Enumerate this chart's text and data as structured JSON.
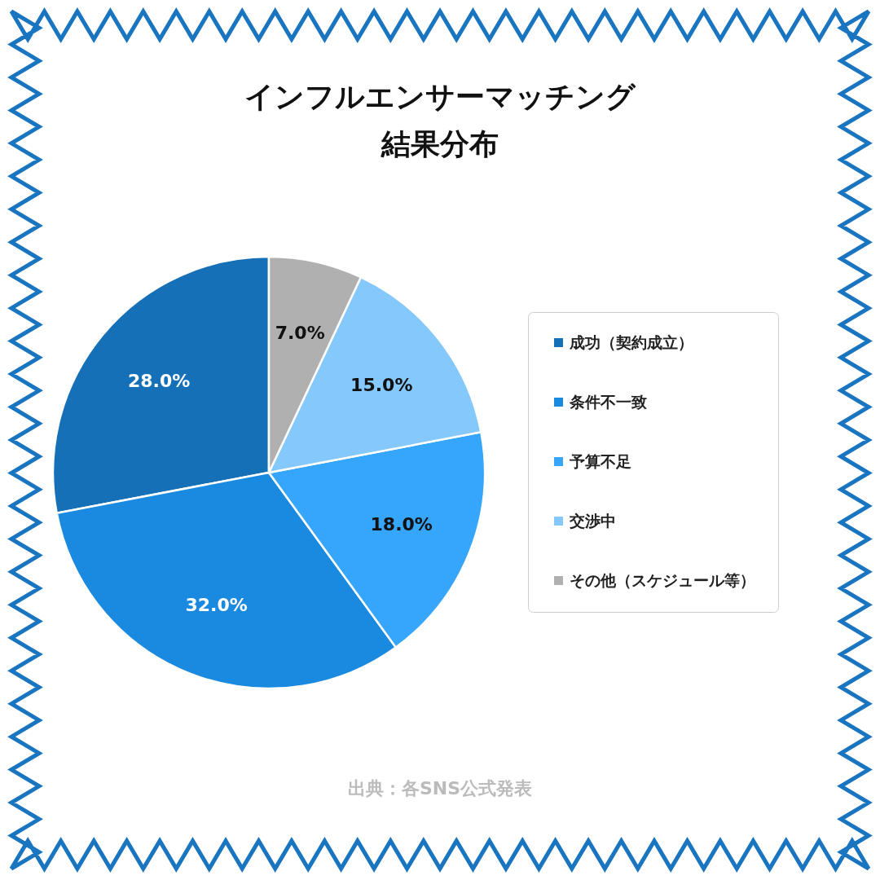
{
  "chart_data": {
    "type": "pie",
    "title": "インフルエンサーマッチング結果分布",
    "categories": [
      "成功（契約成立）",
      "条件不一致",
      "予算不足",
      "交渉中",
      "その他（スケジュール等）"
    ],
    "values": [
      28,
      32,
      18,
      15,
      7
    ],
    "colors": [
      "#1570b8",
      "#1a8ae0",
      "#36a6fc",
      "#85c8fc",
      "#b0b0b0"
    ],
    "value_labels": [
      "28.0%",
      "32.0%",
      "18.0%",
      "15.0%",
      "7.0%"
    ],
    "legend": "right",
    "annotations": [
      "出典：各SNS公式発表"
    ]
  }
}
